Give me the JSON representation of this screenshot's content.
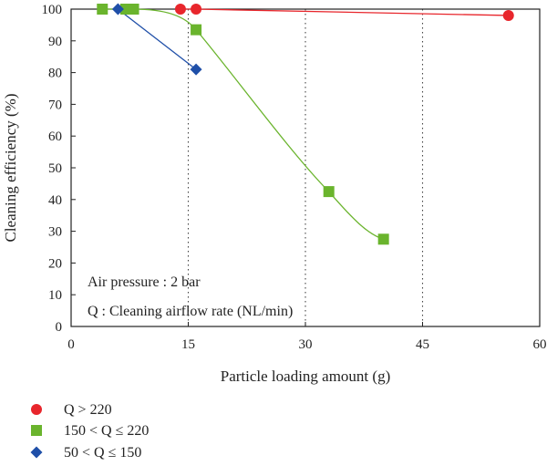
{
  "chart_data": {
    "type": "scatter",
    "xlabel": "Particle loading amount (g)",
    "ylabel": "Cleaning efficiency (%)",
    "xlim": [
      0,
      60
    ],
    "ylim": [
      0,
      100
    ],
    "xticks": [
      0,
      15,
      30,
      45,
      60
    ],
    "yticks": [
      0,
      10,
      20,
      30,
      40,
      50,
      60,
      70,
      80,
      90,
      100
    ],
    "grid": "vertical dotted at x = 15, 30, 45",
    "annotations": [
      "Air pressure : 2 bar",
      "Q : Cleaning airflow rate (NL/min)"
    ],
    "legend_position": "below plot, left",
    "series": [
      {
        "name": "Q > 220",
        "marker": "circle",
        "color": "#e8262c",
        "x": [
          14,
          16,
          56
        ],
        "y": [
          100,
          100,
          98
        ]
      },
      {
        "name": "150 < Q ≤  220",
        "marker": "square",
        "color": "#6ab42d",
        "x": [
          4,
          7,
          8,
          16,
          33,
          40
        ],
        "y": [
          100,
          100,
          100,
          93.5,
          42.5,
          27.5
        ]
      },
      {
        "name": "50 < Q ≤  150",
        "marker": "diamond",
        "color": "#1f4fa8",
        "x": [
          6,
          16
        ],
        "y": [
          100,
          81
        ]
      }
    ]
  }
}
